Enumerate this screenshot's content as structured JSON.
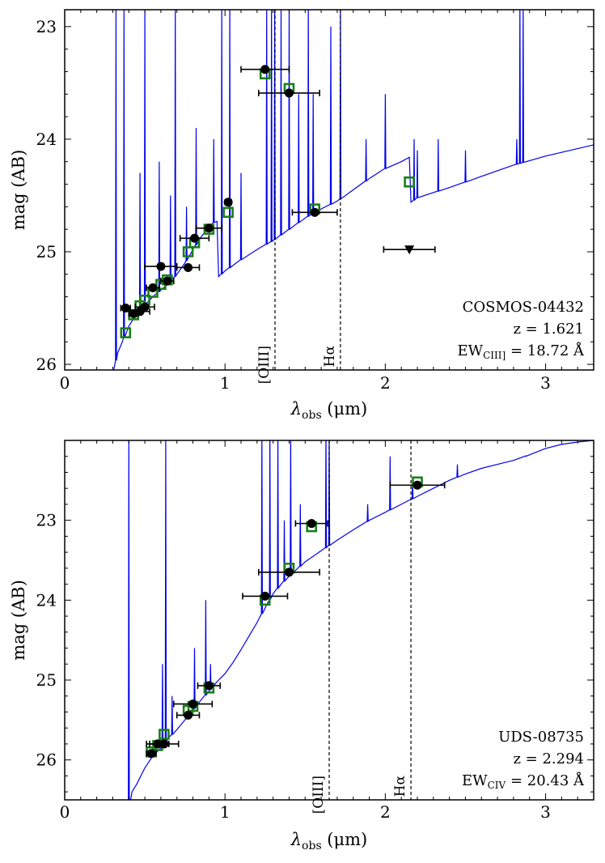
{
  "chart_data": [
    {
      "type": "scatter",
      "object_id": "COSMOS-04432",
      "redshift_label": "z = 1.621",
      "ew_label": "EW",
      "ew_sub": "CIII]",
      "ew_value": " = 18.72 Å",
      "xlabel": "λ",
      "xlabel_sub": "obs",
      "xlabel_unit": " (μm)",
      "ylabel": "mag (AB)",
      "xlim": [
        0,
        3.3
      ],
      "ylim": [
        26.05,
        22.85
      ],
      "x_ticks": [
        0,
        1,
        2,
        3
      ],
      "y_ticks": [
        23,
        24,
        25,
        26
      ],
      "emission_lines": [
        {
          "name": "[OIII]",
          "x": 1.312
        },
        {
          "name": "Hα",
          "x": 1.72
        }
      ],
      "observed": [
        {
          "x": 0.38,
          "y": 25.5,
          "xerr": 0.03
        },
        {
          "x": 0.43,
          "y": 25.55,
          "xerr": 0.03
        },
        {
          "x": 0.47,
          "y": 25.53,
          "xerr": 0.06
        },
        {
          "x": 0.5,
          "y": 25.49,
          "xerr": 0.06
        },
        {
          "x": 0.55,
          "y": 25.32,
          "xerr": 0.04
        },
        {
          "x": 0.6,
          "y": 25.13,
          "xerr": 0.1
        },
        {
          "x": 0.64,
          "y": 25.26,
          "xerr": 0.04
        },
        {
          "x": 0.77,
          "y": 25.14,
          "xerr": 0.07
        },
        {
          "x": 0.81,
          "y": 24.88,
          "xerr": 0.09
        },
        {
          "x": 0.9,
          "y": 24.79,
          "xerr": 0.08
        },
        {
          "x": 1.02,
          "y": 24.56,
          "xerr": 0.02
        },
        {
          "x": 1.25,
          "y": 23.38,
          "xerr": 0.15
        },
        {
          "x": 1.4,
          "y": 23.59,
          "xerr": 0.19
        },
        {
          "x": 1.56,
          "y": 24.65,
          "xerr": 0.14
        }
      ],
      "upper_limits": [
        {
          "x": 2.15,
          "y": 24.98,
          "xerr": 0.16
        }
      ],
      "model_photometry": [
        {
          "x": 0.38,
          "y": 25.72
        },
        {
          "x": 0.43,
          "y": 25.56
        },
        {
          "x": 0.47,
          "y": 25.48
        },
        {
          "x": 0.5,
          "y": 25.43
        },
        {
          "x": 0.55,
          "y": 25.36
        },
        {
          "x": 0.6,
          "y": 25.29
        },
        {
          "x": 0.64,
          "y": 25.25
        },
        {
          "x": 0.77,
          "y": 25.0
        },
        {
          "x": 0.81,
          "y": 24.92
        },
        {
          "x": 0.9,
          "y": 24.8
        },
        {
          "x": 1.02,
          "y": 24.65
        },
        {
          "x": 1.25,
          "y": 23.42
        },
        {
          "x": 1.4,
          "y": 23.55
        },
        {
          "x": 1.56,
          "y": 24.62
        },
        {
          "x": 2.15,
          "y": 24.38
        }
      ],
      "model_spectrum": {
        "continuum": [
          [
            0.3,
            26.1
          ],
          [
            0.33,
            25.9
          ],
          [
            0.36,
            25.8
          ],
          [
            0.4,
            25.66
          ],
          [
            0.45,
            25.55
          ],
          [
            0.5,
            25.47
          ],
          [
            0.55,
            25.4
          ],
          [
            0.6,
            25.34
          ],
          [
            0.65,
            25.28
          ],
          [
            0.7,
            25.2
          ],
          [
            0.75,
            25.1
          ],
          [
            0.8,
            24.98
          ],
          [
            0.85,
            24.87
          ],
          [
            0.9,
            24.78
          ],
          [
            0.93,
            24.74
          ],
          [
            0.95,
            24.73
          ],
          [
            0.96,
            25.22
          ],
          [
            1.0,
            25.17
          ],
          [
            1.1,
            25.07
          ],
          [
            1.2,
            24.98
          ],
          [
            1.3,
            24.9
          ],
          [
            1.4,
            24.8
          ],
          [
            1.5,
            24.7
          ],
          [
            1.6,
            24.62
          ],
          [
            1.7,
            24.55
          ],
          [
            1.8,
            24.45
          ],
          [
            1.9,
            24.35
          ],
          [
            2.0,
            24.26
          ],
          [
            2.1,
            24.2
          ],
          [
            2.15,
            24.16
          ],
          [
            2.16,
            24.56
          ],
          [
            2.2,
            24.52
          ],
          [
            2.4,
            24.43
          ],
          [
            2.6,
            24.33
          ],
          [
            2.8,
            24.23
          ],
          [
            3.0,
            24.15
          ],
          [
            3.3,
            24.05
          ]
        ],
        "lines": [
          [
            0.32,
            22.8
          ],
          [
            0.37,
            22.8
          ],
          [
            0.47,
            24.3
          ],
          [
            0.5,
            22.8
          ],
          [
            0.59,
            24.2
          ],
          [
            0.66,
            24.5
          ],
          [
            0.69,
            22.8
          ],
          [
            0.76,
            24.6
          ],
          [
            0.82,
            23.9
          ],
          [
            0.93,
            24.0
          ],
          [
            0.98,
            22.8
          ],
          [
            1.03,
            22.8
          ],
          [
            1.1,
            24.3
          ],
          [
            1.26,
            22.8
          ],
          [
            1.29,
            22.8
          ],
          [
            1.31,
            22.8
          ],
          [
            1.35,
            22.8
          ],
          [
            1.4,
            22.8
          ],
          [
            1.46,
            23.6
          ],
          [
            1.52,
            22.8
          ],
          [
            1.55,
            23.6
          ],
          [
            1.66,
            23.0
          ],
          [
            1.72,
            22.8
          ],
          [
            1.88,
            24.0
          ],
          [
            2.0,
            23.6
          ],
          [
            2.18,
            24.0
          ],
          [
            2.2,
            24.1
          ],
          [
            2.33,
            24.0
          ],
          [
            2.5,
            24.1
          ],
          [
            2.82,
            24.0
          ],
          [
            2.84,
            22.8
          ],
          [
            2.86,
            22.8
          ]
        ]
      }
    },
    {
      "type": "scatter",
      "object_id": "UDS-08735",
      "redshift_label": "z = 2.294",
      "ew_label": "EW",
      "ew_sub": "CIV",
      "ew_value": " = 20.43 Å",
      "xlabel": "λ",
      "xlabel_sub": "obs",
      "xlabel_unit": " (μm)",
      "ylabel": "mag (AB)",
      "xlim": [
        0,
        3.3
      ],
      "ylim": [
        26.5,
        22.0
      ],
      "x_ticks": [
        0,
        1,
        2,
        3
      ],
      "y_ticks": [
        23,
        24,
        25,
        26
      ],
      "emission_lines": [
        {
          "name": "[OIII]",
          "x": 1.65
        },
        {
          "name": "Hα",
          "x": 2.16
        }
      ],
      "observed": [
        {
          "x": 0.54,
          "y": 25.92,
          "xerr": 0.03
        },
        {
          "x": 0.58,
          "y": 25.8,
          "xerr": 0.07
        },
        {
          "x": 0.62,
          "y": 25.8,
          "xerr": 0.09
        },
        {
          "x": 0.77,
          "y": 25.44,
          "xerr": 0.07
        },
        {
          "x": 0.8,
          "y": 25.3,
          "xerr": 0.12
        },
        {
          "x": 0.9,
          "y": 25.07,
          "xerr": 0.07
        },
        {
          "x": 1.25,
          "y": 23.95,
          "xerr": 0.14
        },
        {
          "x": 1.4,
          "y": 23.65,
          "xerr": 0.19
        },
        {
          "x": 1.54,
          "y": 23.04,
          "xerr": 0.1
        },
        {
          "x": 2.2,
          "y": 22.56,
          "xerr": 0.17
        }
      ],
      "upper_limits": [],
      "model_photometry": [
        {
          "x": 0.54,
          "y": 25.9
        },
        {
          "x": 0.58,
          "y": 25.82
        },
        {
          "x": 0.62,
          "y": 25.68
        },
        {
          "x": 0.77,
          "y": 25.38
        },
        {
          "x": 0.8,
          "y": 25.33
        },
        {
          "x": 0.9,
          "y": 25.1
        },
        {
          "x": 1.25,
          "y": 24.0
        },
        {
          "x": 1.4,
          "y": 23.6
        },
        {
          "x": 1.54,
          "y": 23.08
        },
        {
          "x": 2.2,
          "y": 22.52
        }
      ],
      "model_spectrum": {
        "continuum": [
          [
            0.4,
            26.6
          ],
          [
            0.42,
            26.4
          ],
          [
            0.45,
            26.3
          ],
          [
            0.5,
            26.1
          ],
          [
            0.55,
            25.95
          ],
          [
            0.6,
            25.85
          ],
          [
            0.65,
            25.72
          ],
          [
            0.7,
            25.62
          ],
          [
            0.75,
            25.5
          ],
          [
            0.8,
            25.38
          ],
          [
            0.85,
            25.25
          ],
          [
            0.9,
            25.14
          ],
          [
            0.95,
            25.02
          ],
          [
            1.0,
            24.92
          ],
          [
            1.05,
            24.78
          ],
          [
            1.1,
            24.62
          ],
          [
            1.15,
            24.45
          ],
          [
            1.2,
            24.28
          ],
          [
            1.25,
            24.1
          ],
          [
            1.3,
            23.92
          ],
          [
            1.35,
            23.8
          ],
          [
            1.4,
            23.7
          ],
          [
            1.5,
            23.52
          ],
          [
            1.6,
            23.38
          ],
          [
            1.7,
            23.25
          ],
          [
            1.8,
            23.12
          ],
          [
            1.9,
            23.0
          ],
          [
            2.0,
            22.9
          ],
          [
            2.1,
            22.8
          ],
          [
            2.2,
            22.7
          ],
          [
            2.3,
            22.6
          ],
          [
            2.4,
            22.5
          ],
          [
            2.5,
            22.42
          ],
          [
            2.6,
            22.35
          ],
          [
            2.7,
            22.3
          ],
          [
            2.8,
            22.25
          ],
          [
            2.9,
            22.18
          ],
          [
            3.0,
            22.1
          ],
          [
            3.1,
            22.05
          ],
          [
            3.2,
            22.02
          ],
          [
            3.3,
            22.0
          ]
        ],
        "lines": [
          [
            0.4,
            21.9
          ],
          [
            0.61,
            24.8
          ],
          [
            0.63,
            21.9
          ],
          [
            0.67,
            25.2
          ],
          [
            0.81,
            24.6
          ],
          [
            0.88,
            24.0
          ],
          [
            0.91,
            24.8
          ],
          [
            1.23,
            21.9
          ],
          [
            1.28,
            21.9
          ],
          [
            1.33,
            21.9
          ],
          [
            1.37,
            23.0
          ],
          [
            1.41,
            21.9
          ],
          [
            1.47,
            22.8
          ],
          [
            1.63,
            21.9
          ],
          [
            1.65,
            21.9
          ],
          [
            1.89,
            22.8
          ],
          [
            2.03,
            22.2
          ],
          [
            2.17,
            22.5
          ],
          [
            2.45,
            22.3
          ],
          [
            2.88,
            22.2
          ]
        ]
      }
    }
  ]
}
